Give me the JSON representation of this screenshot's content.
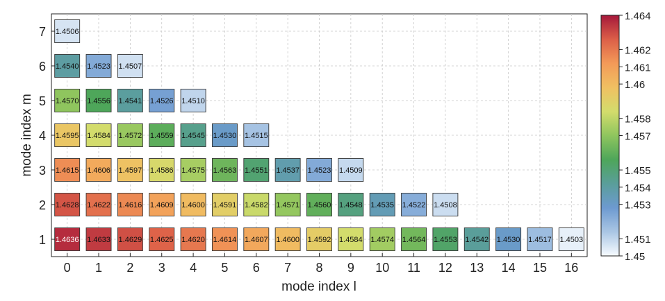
{
  "chart_data": {
    "type": "heatmap",
    "xlabel": "mode index l",
    "ylabel": "mode index m",
    "x_ticks": [
      "0",
      "1",
      "2",
      "3",
      "4",
      "5",
      "6",
      "7",
      "8",
      "9",
      "10",
      "11",
      "12",
      "13",
      "14",
      "15",
      "16"
    ],
    "y_ticks": [
      "1",
      "2",
      "3",
      "4",
      "5",
      "6",
      "7"
    ],
    "xlim": [
      -0.5,
      16.5
    ],
    "ylim": [
      0.5,
      7.5
    ],
    "grid": true,
    "colorbar": {
      "range": [
        1.45,
        1.464
      ],
      "ticks": [
        "1.45",
        "1.451",
        "1.453",
        "1.454",
        "1.455",
        "1.457",
        "1.458",
        "1.46",
        "1.461",
        "1.462",
        "1.464"
      ],
      "tick_values": [
        1.45,
        1.451,
        1.453,
        1.454,
        1.455,
        1.457,
        1.458,
        1.46,
        1.461,
        1.462,
        1.464
      ],
      "position": "right",
      "colormap": [
        "#f7fbff",
        "#aac6e4",
        "#6d9ad0",
        "#5a9e9a",
        "#4ea65a",
        "#8fc55e",
        "#d3dc6c",
        "#f0c062",
        "#f39a58",
        "#dc5f48",
        "#a5183a"
      ]
    },
    "rows": [
      {
        "m": 1,
        "values": [
          "1.4636",
          "1.4633",
          "1.4629",
          "1.4625",
          "1.4620",
          "1.4614",
          "1.4607",
          "1.4600",
          "1.4592",
          "1.4584",
          "1.4574",
          "1.4564",
          "1.4553",
          "1.4542",
          "1.4530",
          "1.4517",
          "1.4503"
        ]
      },
      {
        "m": 2,
        "values": [
          "1.4628",
          "1.4622",
          "1.4616",
          "1.4609",
          "1.4600",
          "1.4591",
          "1.4582",
          "1.4571",
          "1.4560",
          "1.4548",
          "1.4535",
          "1.4522",
          "1.4508"
        ]
      },
      {
        "m": 3,
        "values": [
          "1.4615",
          "1.4606",
          "1.4597",
          "1.4586",
          "1.4575",
          "1.4563",
          "1.4551",
          "1.4537",
          "1.4523",
          "1.4509"
        ]
      },
      {
        "m": 4,
        "values": [
          "1.4595",
          "1.4584",
          "1.4572",
          "1.4559",
          "1.4545",
          "1.4530",
          "1.4515"
        ]
      },
      {
        "m": 5,
        "values": [
          "1.4570",
          "1.4556",
          "1.4541",
          "1.4526",
          "1.4510"
        ]
      },
      {
        "m": 6,
        "values": [
          "1.4540",
          "1.4523",
          "1.4507"
        ]
      },
      {
        "m": 7,
        "values": [
          "1.4506"
        ]
      }
    ]
  }
}
